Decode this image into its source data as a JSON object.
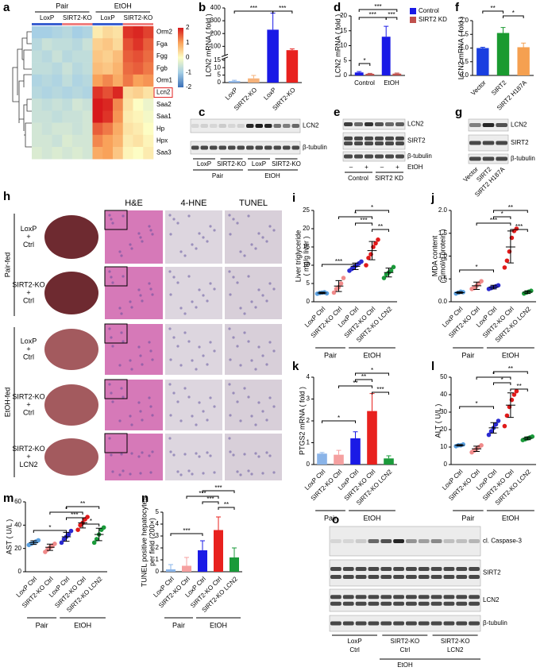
{
  "panel_labels": [
    "a",
    "b",
    "c",
    "d",
    "e",
    "f",
    "g",
    "h",
    "i",
    "j",
    "k",
    "l",
    "m",
    "n",
    "o"
  ],
  "heatmap": {
    "groups": [
      "Pair",
      "EtOH"
    ],
    "columns": [
      "LoxP",
      "SIRT2-KO",
      "LoxP",
      "SIRT2-KO"
    ],
    "rows": [
      "Orm2",
      "Fga",
      "Fgg",
      "Fgb",
      "Orm1",
      "Lcn2",
      "Saa2",
      "Saa1",
      "Hp",
      "Hpx",
      "Saa3"
    ],
    "highlighted_row": "Lcn2",
    "values": [
      [
        -1,
        -1,
        -0.9,
        -0.8,
        -1,
        -0.9,
        0.2,
        0.4,
        0.3,
        1.8,
        1.9,
        1.7
      ],
      [
        -0.8,
        -0.6,
        -0.7,
        -0.7,
        -0.8,
        -0.6,
        0.5,
        0.6,
        0.4,
        1.6,
        1.8,
        1.5
      ],
      [
        -0.7,
        -0.8,
        -0.6,
        -0.8,
        -0.7,
        -0.7,
        0.6,
        0.5,
        0.7,
        1.5,
        1.6,
        1.4
      ],
      [
        -0.7,
        -0.7,
        -0.8,
        -0.6,
        -0.8,
        -0.7,
        0.7,
        0.6,
        0.8,
        1.4,
        1.5,
        1.3
      ],
      [
        -0.9,
        -0.8,
        -0.9,
        -0.7,
        -0.9,
        -0.8,
        1,
        1.2,
        0.9,
        1.3,
        1,
        1.1
      ],
      [
        -0.8,
        -0.9,
        -0.8,
        -0.9,
        -0.8,
        -0.9,
        1.8,
        1.6,
        1.9,
        0.4,
        0.5,
        0.3
      ],
      [
        -0.6,
        -0.7,
        -0.6,
        -0.7,
        -0.5,
        -0.6,
        2,
        1.9,
        1.2,
        0.3,
        0,
        -0.2
      ],
      [
        -0.6,
        -0.6,
        -0.7,
        -0.6,
        -0.6,
        -0.5,
        2,
        1.8,
        1.1,
        0.2,
        0.1,
        -0.1
      ],
      [
        -0.5,
        -0.6,
        -0.5,
        -0.5,
        -0.6,
        -0.5,
        1.5,
        1.3,
        0.9,
        0.3,
        0.2,
        0
      ],
      [
        -0.5,
        -0.5,
        -0.6,
        -0.4,
        -0.5,
        -0.5,
        1.2,
        1,
        0.8,
        0.2,
        0.3,
        0.1
      ],
      [
        -0.4,
        -0.5,
        -0.4,
        -0.5,
        -0.4,
        -0.5,
        0.9,
        1,
        0.6,
        0.1,
        0,
        0.2
      ]
    ],
    "colorbar_ticks": [
      2,
      1,
      0,
      -1,
      -2
    ]
  },
  "chart_data": [
    {
      "type": "bar",
      "y_label": "LCN2 mRNA ( fold )",
      "categories": [
        "LoxP",
        "SIRT2-KO",
        "LoxP",
        "SIRT2-KO"
      ],
      "values": [
        1,
        2.8,
        230,
        70
      ],
      "errors": [
        0.5,
        2,
        130,
        10
      ],
      "colors": [
        "#8ab4e8",
        "#f6b27a",
        "#1a1ae6",
        "#e8211e"
      ],
      "ylim": [
        0,
        400
      ],
      "ylim_break": [
        15,
        50
      ],
      "yticks": [
        0,
        5,
        10,
        15,
        100,
        200,
        300,
        400
      ],
      "significance": [
        "***",
        "***"
      ]
    },
    {
      "type": "bar",
      "y_label": "LCN2 mRNA ( fold )",
      "categories": [
        "Control",
        "EtOH"
      ],
      "series": [
        {
          "name": "Control",
          "color": "#1a1ae6",
          "values": [
            1,
            13
          ],
          "errors": [
            0.3,
            3.5
          ]
        },
        {
          "name": "SIRT2 KD",
          "color": "#c0504d",
          "values": [
            0.55,
            0.6
          ],
          "errors": [
            0.15,
            0.2
          ]
        }
      ],
      "ylim": [
        0,
        20
      ],
      "yticks": [
        0,
        5,
        10,
        15,
        20
      ],
      "significance": [
        "*",
        "***",
        "***",
        "***"
      ]
    },
    {
      "type": "bar",
      "y_label": "LCN2 mRNA ( fold )",
      "categories": [
        "Vector",
        "SIRT2",
        "SIRT2 H187A"
      ],
      "values": [
        1,
        1.55,
        1.03
      ],
      "errors": [
        0.03,
        0.2,
        0.15
      ],
      "colors": [
        "#1a3fe0",
        "#1a9a30",
        "#f5a050"
      ],
      "ylim": [
        0,
        2
      ],
      "yticks": [
        {
          "value": 0,
          "label": "0.0"
        },
        {
          "value": 0.5,
          "label": "0.5"
        },
        {
          "value": 1,
          "label": "1.0"
        },
        {
          "value": 1.5,
          "label": "1.5"
        },
        {
          "value": 2,
          "label": "2.0"
        }
      ],
      "significance": [
        "**",
        "*"
      ]
    },
    {
      "type": "scatter",
      "y_label": [
        "Liver triglyceride",
        "( mg/g liver )"
      ],
      "categories": [
        "LoxP Ctrl",
        "SIRT2-KO Ctrl",
        "LoxP Ctrl",
        "SIRT2-KO Ctrl",
        "SIRT2-KO LCN2"
      ],
      "groups": [
        "Pair",
        "EtOH"
      ],
      "colors": [
        "#5aa0e0",
        "#f08a8a",
        "#2a2ad0",
        "#e01a1a",
        "#1a9a3a"
      ],
      "points": [
        [
          2.2,
          2.4,
          2.5,
          2.6,
          2.3
        ],
        [
          2.5,
          3.5,
          4,
          5,
          6.5
        ],
        [
          8.5,
          9,
          9.5,
          10,
          10.5,
          11
        ],
        [
          10,
          12,
          13,
          15,
          16,
          17
        ],
        [
          6.5,
          7.5,
          8,
          8.5,
          9.5
        ]
      ],
      "values": [
        2.4,
        4.3,
        9.7,
        14,
        8
      ],
      "errors": [
        0.2,
        1.5,
        0.9,
        2.5,
        1.2
      ],
      "ylim": [
        0,
        25
      ],
      "yticks": [
        0,
        5,
        10,
        15,
        20,
        25
      ],
      "significance": [
        "*",
        "*",
        "***",
        "**",
        "***"
      ]
    },
    {
      "type": "scatter",
      "y_label": [
        "MDA content",
        "( μmol/g protein )"
      ],
      "categories": [
        "LoxP Ctrl",
        "SIRT2-KO Ctrl",
        "LoxP Ctrl",
        "SIRT2-KO Ctrl",
        "SIRT2-KO LCN2"
      ],
      "groups": [
        "Pair",
        "EtOH"
      ],
      "colors": [
        "#5aa0e0",
        "#f08a8a",
        "#2a2ad0",
        "#e01a1a",
        "#1a9a3a"
      ],
      "points": [
        [
          0.18,
          0.2,
          0.22,
          0.21
        ],
        [
          0.28,
          0.3,
          0.35,
          0.4,
          0.45
        ],
        [
          0.28,
          0.3,
          0.32,
          0.34,
          0.36
        ],
        [
          0.75,
          0.9,
          1.1,
          1.4,
          1.55,
          1.6
        ],
        [
          0.18,
          0.2,
          0.22,
          0.24
        ]
      ],
      "values": [
        0.2,
        0.35,
        0.32,
        1.2,
        0.21
      ],
      "errors": [
        0.02,
        0.08,
        0.04,
        0.35,
        0.03
      ],
      "ylim": [
        0,
        2
      ],
      "yticks": [
        {
          "value": 0,
          "label": "0.0"
        },
        {
          "value": 0.5,
          "label": "0.5"
        },
        {
          "value": 1,
          "label": "1.0"
        },
        {
          "value": 1.5,
          "label": "1.5"
        },
        {
          "value": 2,
          "label": "2.0"
        }
      ],
      "significance": [
        "**",
        "*",
        "***",
        "***",
        "*"
      ]
    },
    {
      "type": "bar",
      "y_label": "PTGS2 mRNA ( fold )",
      "categories": [
        "LoxP Ctrl",
        "SIRT2-KO Ctrl",
        "LoxP Ctrl",
        "SIRT2-KO Ctrl",
        "SIRT2-KO LCN2"
      ],
      "groups": [
        "Pair",
        "EtOH"
      ],
      "colors": [
        "#8ab4e8",
        "#f5a0a0",
        "#1a1ae6",
        "#e8211e",
        "#1a9a3a"
      ],
      "values": [
        0.5,
        0.45,
        1.2,
        2.45,
        0.28
      ],
      "errors": [
        0.05,
        0.2,
        0.3,
        0.8,
        0.12
      ],
      "ylim": [
        0,
        4
      ],
      "yticks": [
        0,
        1,
        2,
        3,
        4
      ],
      "significance": [
        "*",
        "**",
        "**",
        "***",
        "*"
      ]
    },
    {
      "type": "scatter",
      "y_label": "ALT ( U/L )",
      "categories": [
        "LoxP Ctrl",
        "SIRT2-KO Ctrl",
        "LoxP Ctrl",
        "SIRT2-KO Ctrl",
        "SIRT2-KO LCN2"
      ],
      "groups": [
        "Pair",
        "EtOH"
      ],
      "colors": [
        "#5aa0e0",
        "#f08a8a",
        "#2a2ad0",
        "#e01a1a",
        "#1a9a3a"
      ],
      "points": [
        [
          10.5,
          11,
          11,
          11.5
        ],
        [
          7,
          8,
          9,
          10,
          11
        ],
        [
          17,
          19,
          21,
          23,
          25
        ],
        [
          22,
          28,
          33,
          37,
          40,
          42
        ],
        [
          14,
          14.5,
          15,
          15.5,
          16
        ]
      ],
      "values": [
        11,
        9,
        21,
        34,
        15
      ],
      "errors": [
        0.4,
        1.5,
        3,
        7,
        0.8
      ],
      "ylim": [
        0,
        50
      ],
      "yticks": [
        0,
        10,
        20,
        30,
        40,
        50
      ],
      "significance": [
        "**",
        "*",
        "*",
        "**",
        "*"
      ]
    },
    {
      "type": "scatter",
      "y_label": "AST ( U/L )",
      "categories": [
        "LoxP Ctrl",
        "SIRT2-KO Ctrl",
        "LoxP Ctrl",
        "SIRT2-KO Ctrl",
        "SIRT2-KO LCN2"
      ],
      "groups": [
        "Pair",
        "EtOH"
      ],
      "colors": [
        "#5aa0e0",
        "#f08a8a",
        "#2a2ad0",
        "#e01a1a",
        "#1a9a3a"
      ],
      "points": [
        [
          23,
          24,
          25,
          26,
          27
        ],
        [
          17,
          19,
          21,
          22,
          24
        ],
        [
          25,
          28,
          30,
          32,
          35
        ],
        [
          36,
          40,
          42,
          45,
          47
        ],
        [
          25,
          28,
          32,
          36,
          38
        ]
      ],
      "values": [
        25,
        21,
        30,
        42,
        32
      ],
      "errors": [
        1.6,
        2.7,
        3.8,
        4.4,
        5.3
      ],
      "ylim": [
        0,
        60
      ],
      "yticks": [
        0,
        20,
        40,
        60
      ],
      "significance": [
        "**",
        "*",
        "***",
        "*",
        "*"
      ]
    },
    {
      "type": "bar",
      "y_label": [
        "TUNEL positive hepatocytes",
        "per field (200×)"
      ],
      "categories": [
        "LoxP Ctrl",
        "SIRT2-KO Ctrl",
        "LoxP Ctrl",
        "SIRT2-KO Ctrl",
        "SIRT2-KO LCN2"
      ],
      "groups": [
        "Pair",
        "EtOH"
      ],
      "colors": [
        "#8ab4e8",
        "#f5a0a0",
        "#1a1ae6",
        "#e8211e",
        "#1a9a3a"
      ],
      "values": [
        0.2,
        0.5,
        1.8,
        3.5,
        1.2
      ],
      "errors": [
        0.4,
        0.7,
        0.8,
        1.1,
        0.8
      ],
      "ylim": [
        0,
        5
      ],
      "yticks": [
        0,
        1,
        2,
        3,
        4,
        5
      ],
      "significance": [
        "***",
        "***",
        "***",
        "**",
        "***"
      ]
    }
  ],
  "blots": {
    "c": {
      "bands": [
        "LCN2",
        "β-tubulin"
      ],
      "lanes": [
        "LoxP",
        "SIRT2-KO",
        "LoxP",
        "SIRT2-KO"
      ],
      "groups": [
        "Pair",
        "EtOH"
      ]
    },
    "e": {
      "bands": [
        "LCN2",
        "SIRT2",
        "β-tubulin"
      ],
      "lanes": [
        "–",
        "+",
        "–",
        "+"
      ],
      "treatment": "EtOH",
      "groups": [
        "Control",
        "SIRT2 KD"
      ]
    },
    "g": {
      "bands": [
        "LCN2",
        "SIRT2",
        "β-tubulin"
      ],
      "lanes": [
        "Vector",
        "SIRT2",
        "SIRT2 H187A"
      ]
    },
    "o": {
      "bands": [
        "cl. Caspase-3",
        "SIRT2",
        "LCN2",
        "β-tubulin"
      ],
      "lanes": [
        [
          "LoxP",
          "Ctrl"
        ],
        [
          "SIRT2-KO",
          "Ctrl"
        ],
        [
          "SIRT2-KO",
          "LCN2"
        ]
      ],
      "group": "EtOH"
    }
  },
  "histology": {
    "columns": [
      "H&E",
      "4-HNE",
      "TUNEL"
    ],
    "rows": [
      [
        "LoxP",
        "+",
        "Ctrl"
      ],
      [
        "SIRT2-KO",
        "+",
        "Ctrl"
      ],
      [
        "LoxP",
        "+",
        "Ctrl"
      ],
      [
        "SIRT2-KO",
        "+",
        "Ctrl"
      ],
      [
        "SIRT2-KO",
        "+",
        "LCN2"
      ]
    ],
    "groups": [
      "Pair-fed",
      "EtOH-fed"
    ]
  }
}
